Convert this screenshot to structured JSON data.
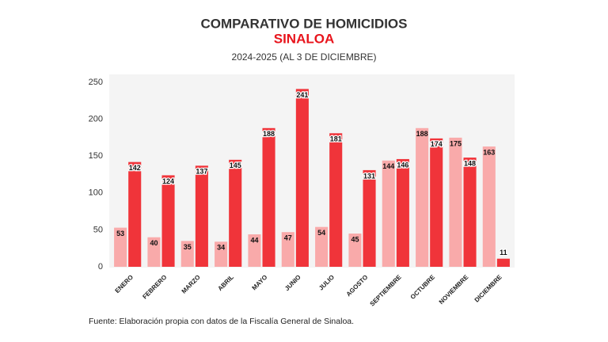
{
  "chart_data": {
    "type": "bar",
    "title": "COMPARATIVO DE HOMICIDIOS",
    "subtitle": "SINALOA",
    "period": "2024-2025 (AL 3 DE DICIEMBRE)",
    "source": "Fuente: Elaboración propia con datos de la Fiscalía General de Sinaloa.",
    "categories": [
      "ENERO",
      "FEBRERO",
      "MARZO",
      "ABRIL",
      "MAYO",
      "JUNIO",
      "JULIO",
      "AGOSTO",
      "SEPTIEMBRE",
      "OCTUBRE",
      "NOVIEMBRE",
      "DICIEMBRE"
    ],
    "series": [
      {
        "color": "#f9aaaa",
        "values": [
          53,
          40,
          35,
          34,
          44,
          47,
          54,
          45,
          144,
          188,
          175,
          163
        ]
      },
      {
        "color": "#f0343a",
        "values": [
          142,
          124,
          137,
          145,
          188,
          241,
          181,
          131,
          146,
          174,
          148,
          11
        ]
      }
    ],
    "ylim": [
      0,
      250
    ],
    "yticks": [
      0,
      50,
      100,
      150,
      200,
      250
    ],
    "grid": false
  }
}
